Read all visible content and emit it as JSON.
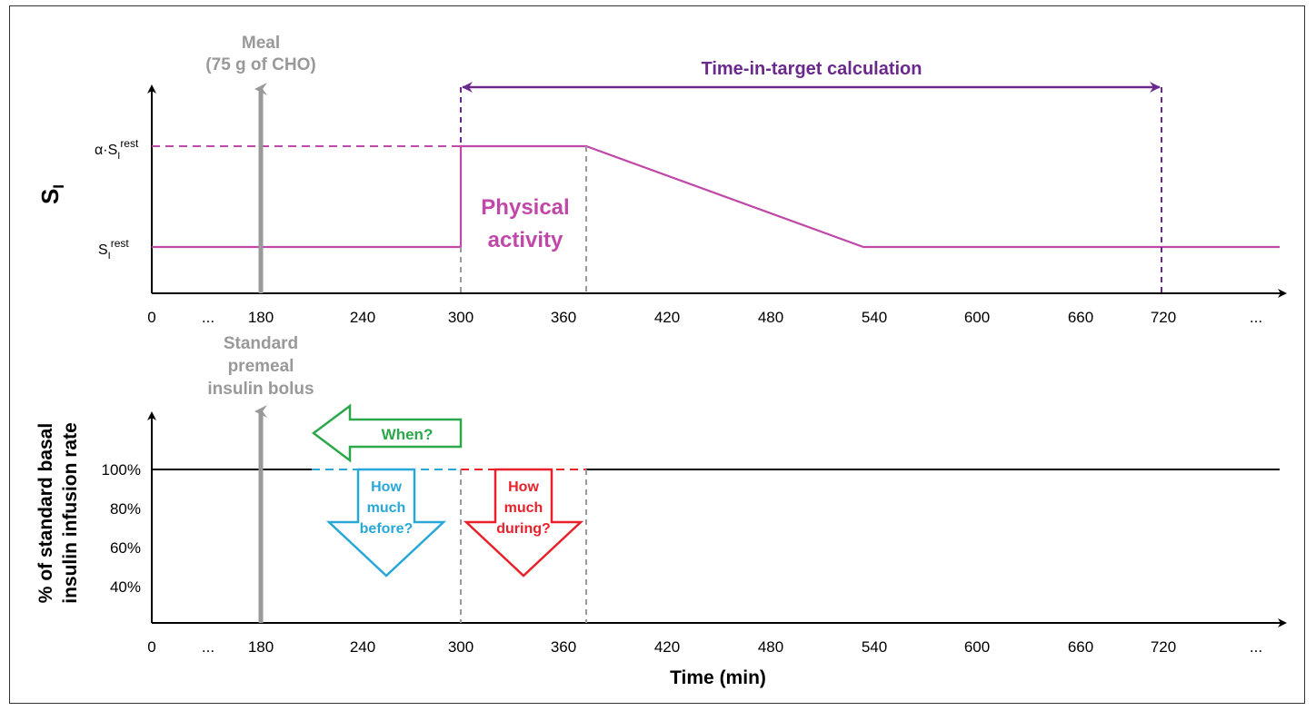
{
  "top_panel": {
    "y_axis_title": "S",
    "y_axis_title_sub": "I",
    "y_labels": {
      "high": {
        "prefix": "α·S",
        "sub": "I",
        "sup": "rest"
      },
      "low": {
        "prefix": "S",
        "sub": "I",
        "sup": "rest"
      }
    },
    "meal_label_line1": "Meal",
    "meal_label_line2": "(75 g of CHO)",
    "time_in_target_label": "Time-in-target calculation",
    "physical_activity_line1": "Physical",
    "physical_activity_line2": "activity",
    "x_ticks": [
      "0",
      "...",
      "180",
      "240",
      "300",
      "360",
      "420",
      "480",
      "540",
      "600",
      "660",
      "720",
      "..."
    ]
  },
  "bottom_panel": {
    "y_axis_title_line1": "% of standard basal",
    "y_axis_title_line2": "insulin infusion rate",
    "y_ticks": [
      "100%",
      "80%",
      "60%",
      "40%"
    ],
    "bolus_label_line1": "Standard",
    "bolus_label_line2": "premeal",
    "bolus_label_line3": "insulin bolus",
    "when_label": "When?",
    "before_line1": "How",
    "before_line2": "much",
    "before_line3": "before?",
    "during_line1": "How",
    "during_line2": "much",
    "during_line3": "during?",
    "x_ticks": [
      "0",
      "...",
      "180",
      "240",
      "300",
      "360",
      "420",
      "480",
      "540",
      "600",
      "660",
      "720",
      "..."
    ],
    "x_axis_title": "Time (min)"
  },
  "colors": {
    "magenta": "#c048a8",
    "purple": "#6a2a8c",
    "gray": "#999999",
    "green": "#2aa84a",
    "cyan": "#29a8d8",
    "red": "#e8212a",
    "axis": "#000000"
  },
  "chart_data": [
    {
      "type": "line",
      "name": "",
      "x_unit": "min",
      "x_ticks": [
        0,
        180,
        240,
        300,
        360,
        420,
        480,
        540,
        600,
        660,
        720
      ],
      "series": [
        {
          "name": "",
          "points": [
            [
              0,
              "S_I_rest"
            ],
            [
              300,
              "S_I_rest"
            ],
            [
              300,
              "alpha_S_I_rest"
            ],
            [
              375,
              "alpha_S_I_rest"
            ],
            [
              540,
              "S_I_rest"
            ],
            [
              800,
              "S_I_rest"
            ]
          ]
        }
      ],
      "events": {
        "meal_min": 180,
        "activity_start_min": 300,
        "activity_end_min": 375,
        "time_in_target_window_min": [
          300,
          720
        ]
      }
    },
    {
      "type": "line",
      "name": "",
      "x_unit": "min",
      "x_ticks": [
        0,
        180,
        240,
        300,
        360,
        420,
        480,
        540,
        600,
        660,
        720
      ],
      "y_ticks": [
        100,
        80,
        60,
        40
      ],
      "series": [
        {
          "name": "",
          "points": [
            [
              0,
              100
            ],
            [
              800,
              100
            ]
          ]
        }
      ],
      "events": {
        "bolus_min": 180,
        "before_window_min": [
          210,
          300
        ],
        "during_window_min": [
          300,
          375
        ]
      }
    }
  ]
}
